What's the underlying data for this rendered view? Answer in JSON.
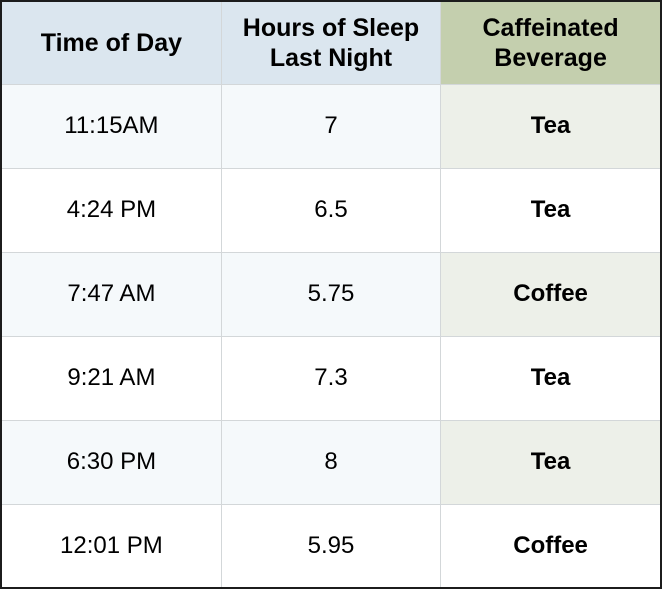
{
  "table": {
    "columns": [
      {
        "label": "Time of Day"
      },
      {
        "label": "Hours of Sleep Last Night"
      },
      {
        "label": "Caffeinated Beverage"
      }
    ],
    "rows": [
      {
        "time": "11:15AM",
        "hours": "7",
        "beverage": "Tea"
      },
      {
        "time": "4:24 PM",
        "hours": "6.5",
        "beverage": "Tea"
      },
      {
        "time": "7:47 AM",
        "hours": "5.75",
        "beverage": "Coffee"
      },
      {
        "time": "9:21 AM",
        "hours": "7.3",
        "beverage": "Tea"
      },
      {
        "time": "6:30 PM",
        "hours": "8",
        "beverage": "Tea"
      },
      {
        "time": "12:01 PM",
        "hours": "5.95",
        "beverage": "Coffee"
      }
    ],
    "colors": {
      "header_blue": "#dbe6ef",
      "header_green": "#c4cfae",
      "odd_row_tint": "#f5f9fb",
      "odd_row_beverage_tint": "#edf0e9",
      "even_row": "#ffffff",
      "cell_border": "#d3d7d9",
      "outer_border": "#1c1c1c",
      "text": "#000000"
    }
  },
  "chart_data": {
    "type": "table",
    "title": "",
    "columns": [
      "Time of Day",
      "Hours of Sleep Last Night",
      "Caffeinated Beverage"
    ],
    "rows": [
      [
        "11:15AM",
        7,
        "Tea"
      ],
      [
        "4:24 PM",
        6.5,
        "Tea"
      ],
      [
        "7:47 AM",
        5.75,
        "Coffee"
      ],
      [
        "9:21 AM",
        7.3,
        "Tea"
      ],
      [
        "6:30 PM",
        8,
        "Tea"
      ],
      [
        "12:01 PM",
        5.95,
        "Coffee"
      ]
    ]
  }
}
